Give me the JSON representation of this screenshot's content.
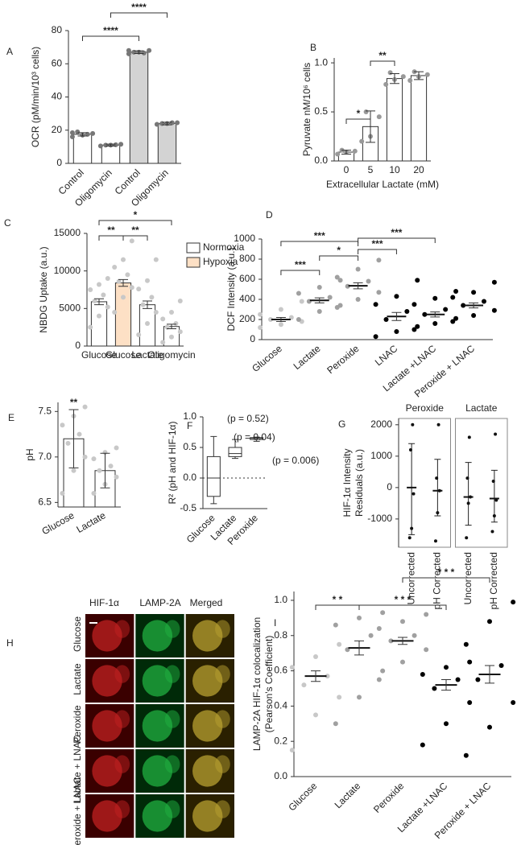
{
  "chart_data": [
    {
      "type": "bar",
      "panel": "A",
      "ylabel": "OCR (pM/min/10³ cells)",
      "categories": [
        "Control",
        "Oligomycin",
        "Control",
        "Oligomycin"
      ],
      "values": [
        17.5,
        11,
        67,
        24
      ],
      "errors": [
        1,
        0.6,
        0.8,
        0.8
      ],
      "colors": [
        "#ffffff",
        "#ffffff",
        "#d3d3d3",
        "#d3d3d3"
      ],
      "point_color": "#777777",
      "points": [
        [
          16,
          17,
          18,
          19,
          17.5,
          18.5
        ],
        [
          10.5,
          11,
          11.5,
          11,
          11.2
        ],
        [
          66,
          67,
          68,
          67,
          66.5,
          68
        ],
        [
          23.5,
          24,
          24.5,
          24,
          24.5
        ]
      ],
      "ylim": [
        0,
        80
      ],
      "yticks": [
        0,
        20,
        40,
        60,
        80
      ],
      "significance": [
        {
          "from": 0,
          "to": 2,
          "label": "****"
        },
        {
          "from": 1,
          "to": 3,
          "label": "****"
        }
      ]
    },
    {
      "type": "bar",
      "panel": "B",
      "ylabel": "Pyruvate nM/10⁶ cells",
      "xlabel": "Extracellular Lactate (mM)",
      "categories": [
        "0",
        "5",
        "10",
        "20"
      ],
      "values": [
        0.09,
        0.35,
        0.84,
        0.87
      ],
      "errors": [
        0.02,
        0.16,
        0.05,
        0.04
      ],
      "colors": [
        "#ffffff",
        "#ffffff",
        "#ffffff",
        "#ffffff"
      ],
      "point_color": "#999999",
      "points": [
        [
          0.07,
          0.09,
          0.1,
          0.11
        ],
        [
          0.2,
          0.25,
          0.45,
          0.5
        ],
        [
          0.78,
          0.83,
          0.86,
          0.9
        ],
        [
          0.82,
          0.86,
          0.88,
          0.91
        ]
      ],
      "ylim": [
        0,
        1.05
      ],
      "yticks": [
        {
          "value": 0,
          "label": "0.0"
        },
        {
          "value": 0.5,
          "label": "0.5"
        },
        {
          "value": 1,
          "label": "1.0"
        }
      ],
      "significance": [
        {
          "from": 0,
          "to": 1,
          "label": "*"
        },
        {
          "from": 1,
          "to": 2,
          "label": "**"
        }
      ]
    },
    {
      "type": "bar",
      "panel": "C",
      "ylabel": "NBDG Uptake (a.u.)",
      "categories": [
        "Glucose",
        "Glucose",
        "Lactate",
        "Oligomycin"
      ],
      "values": [
        5900,
        8400,
        5500,
        2600
      ],
      "errors": [
        400,
        450,
        500,
        300
      ],
      "colors": [
        "#ffffff",
        "#fde0c5",
        "#ffffff",
        "#ffffff"
      ],
      "point_color": "#c8c8c8",
      "points": [
        [
          2500,
          4000,
          5200,
          6000,
          6800,
          7500,
          8200,
          9000
        ],
        [
          4500,
          6500,
          7800,
          8600,
          9500,
          10500,
          11500,
          14000
        ],
        [
          1500,
          3000,
          4500,
          5500,
          6500,
          7600,
          8700,
          11500
        ],
        [
          500,
          1200,
          1900,
          2500,
          3000,
          3600,
          4500,
          6000
        ]
      ],
      "legend": [
        {
          "name": "Normoxia",
          "color": "#ffffff"
        },
        {
          "name": "Hypoxia",
          "color": "#fde0c5"
        }
      ],
      "ylim": [
        0,
        15000
      ],
      "yticks": [
        0,
        5000,
        10000,
        15000
      ],
      "significance": [
        {
          "from": 0,
          "to": 1,
          "label": "**"
        },
        {
          "from": 1,
          "to": 2,
          "label": "**"
        },
        {
          "from": 0,
          "to": 3,
          "label": "*"
        }
      ]
    },
    {
      "type": "dot",
      "panel": "D",
      "ylabel": "DCF Intensity (a.u.)",
      "categories": [
        "Glucose",
        "Lactate",
        "Peroxide",
        "LNAC",
        "Lactate +LNAC",
        "Peroxide + LNAC"
      ],
      "values": [
        200,
        390,
        535,
        230,
        250,
        340
      ],
      "errors": [
        20,
        25,
        30,
        40,
        25,
        25
      ],
      "colors": [
        "#c8c8c8",
        "#a0a0a0",
        "#a0a0a0",
        "#000000",
        "#000000",
        "#000000"
      ],
      "points": [
        [
          120,
          150,
          180,
          200,
          220,
          250,
          300,
          380
        ],
        [
          200,
          280,
          340,
          380,
          420,
          460,
          520,
          590
        ],
        [
          320,
          400,
          470,
          530,
          580,
          620,
          700,
          790
        ],
        [
          30,
          80,
          130,
          200,
          280,
          350,
          430,
          590
        ],
        [
          100,
          160,
          210,
          250,
          300,
          350,
          410,
          480
        ],
        [
          180,
          240,
          290,
          340,
          380,
          420,
          470,
          570
        ]
      ],
      "ylim": [
        0,
        1000
      ],
      "yticks": [
        0,
        200,
        400,
        600,
        800,
        1000
      ],
      "significance": [
        {
          "from": 0,
          "to": 1,
          "label": "***"
        },
        {
          "from": 1,
          "to": 2,
          "label": "*"
        },
        {
          "from": 0,
          "to": 2,
          "label": "***"
        },
        {
          "from": 2,
          "to": 3,
          "label": "***"
        },
        {
          "from": 2,
          "to": 4,
          "label": "***"
        }
      ]
    },
    {
      "type": "bar",
      "panel": "E",
      "ylabel": "pH",
      "categories": [
        "Glucose",
        "Lactate"
      ],
      "values": [
        7.2,
        6.85
      ],
      "errors": [
        0.32,
        0.19
      ],
      "colors": [
        "#ffffff",
        "#ffffff"
      ],
      "point_color": "#c8c8c8",
      "points": [
        [
          6.6,
          6.85,
          7.0,
          7.15,
          7.25,
          7.35,
          7.45,
          7.55
        ],
        [
          6.6,
          6.7,
          6.78,
          6.85,
          6.9,
          6.98,
          7.05,
          7.1
        ]
      ],
      "ylim": [
        6.45,
        7.6
      ],
      "yticks": [
        {
          "value": 6.5,
          "label": "6.5"
        },
        {
          "value": 7,
          "label": "7.0"
        },
        {
          "value": 7.5,
          "label": "7.5"
        }
      ],
      "annotations": [
        {
          "category": 0,
          "label": "**"
        }
      ]
    },
    {
      "type": "box",
      "panel": "F",
      "ylabel": "R² (pH and HIF-1α)",
      "categories": [
        "Glucose",
        "Lactate",
        "Peroxide"
      ],
      "min": [
        -0.42,
        0.32,
        0.6
      ],
      "q1": [
        -0.3,
        0.35,
        0.63
      ],
      "median": [
        0,
        0.4,
        0.65
      ],
      "q3": [
        0.35,
        0.5,
        0.66
      ],
      "max": [
        0.68,
        0.63,
        0.67
      ],
      "reference_line": 0,
      "pvalues": [
        "(p = 0.52)",
        "(p = 0.04)",
        "(p = 0.006)"
      ],
      "ylim": [
        -0.5,
        1
      ],
      "yticks": [
        {
          "value": -0.5,
          "label": "-0.5"
        },
        {
          "value": 0,
          "label": "0.0"
        },
        {
          "value": 0.5,
          "label": "0.5"
        },
        {
          "value": 1,
          "label": "1.0"
        }
      ]
    },
    {
      "type": "range-panels",
      "panel": "G",
      "ylabel": [
        "HIF-1α Intensity",
        "Residuals (a.u.)"
      ],
      "ylim": [
        -1900,
        2200
      ],
      "yticks": [
        -1000,
        0,
        1000,
        2000
      ],
      "panels": [
        {
          "title": "Peroxide",
          "categories": [
            "Uncorrected",
            "pH Corrected"
          ],
          "values": [
            0,
            -100
          ],
          "ranges": [
            [
              -1500,
              1400
            ],
            [
              -900,
              900
            ]
          ],
          "points": [
            [
              -1600,
              -1300,
              -200,
              1200,
              2000
            ],
            [
              -1700,
              -800,
              -100,
              300,
              2000
            ]
          ]
        },
        {
          "title": "Lactate",
          "categories": [
            "Uncorrected",
            "pH Corrected"
          ],
          "values": [
            -300,
            -350
          ],
          "ranges": [
            [
              -1200,
              800
            ],
            [
              -1100,
              550
            ]
          ],
          "points": [
            [
              -1600,
              -500,
              -300,
              300,
              1600
            ],
            [
              -1400,
              -900,
              -400,
              200,
              1700
            ]
          ]
        }
      ]
    },
    {
      "type": "image-grid",
      "panel": "H",
      "columns": [
        "HIF-1α",
        "LAMP-2A",
        "Merged"
      ],
      "column_colors": [
        "#e03030",
        "#20a040",
        "#333333"
      ],
      "rows": [
        "Glucose",
        "Lactate",
        "Peroxide",
        "Lactate + LNAC",
        "Peroxide + LNAC"
      ]
    },
    {
      "type": "dot",
      "panel": "I",
      "ylabel": [
        "LAMP-2A HIF-1α colocalization",
        "(Pearson's Coefficient)"
      ],
      "categories": [
        "Glucose",
        "Lactate",
        "Peroxide",
        "Lactate +LNAC",
        "Peroxide + LNAC"
      ],
      "values": [
        0.57,
        0.73,
        0.77,
        0.52,
        0.58
      ],
      "errors": [
        0.03,
        0.04,
        0.02,
        0.03,
        0.05
      ],
      "colors": [
        "#c8c8c8",
        "#a0a0a0",
        "#a0a0a0",
        "#000000",
        "#000000"
      ],
      "points": [
        [
          0.15,
          0.35,
          0.45,
          0.52,
          0.57,
          0.62,
          0.68,
          0.75
        ],
        [
          0.3,
          0.45,
          0.6,
          0.72,
          0.8,
          0.86,
          0.9,
          0.93
        ],
        [
          0.55,
          0.65,
          0.72,
          0.77,
          0.8,
          0.84,
          0.88,
          0.92
        ],
        [
          0.18,
          0.3,
          0.42,
          0.5,
          0.55,
          0.58,
          0.62,
          0.65
        ],
        [
          0.12,
          0.28,
          0.42,
          0.55,
          0.63,
          0.75,
          0.88,
          0.99
        ]
      ],
      "ylim": [
        0,
        1.05
      ],
      "yticks": [
        {
          "value": 0,
          "label": "0.0"
        },
        {
          "value": 0.2,
          "label": "0.2"
        },
        {
          "value": 0.4,
          "label": "0.4"
        },
        {
          "value": 0.6,
          "label": "0.6"
        },
        {
          "value": 0.8,
          "label": "0.8"
        },
        {
          "value": 1,
          "label": "1.0"
        }
      ],
      "significance": [
        {
          "from": 0,
          "to": 1,
          "label": "* *"
        },
        {
          "from": 1,
          "to": 3,
          "label": "* * *"
        },
        {
          "from": 2,
          "to": 4,
          "label": "* * *"
        }
      ]
    }
  ]
}
